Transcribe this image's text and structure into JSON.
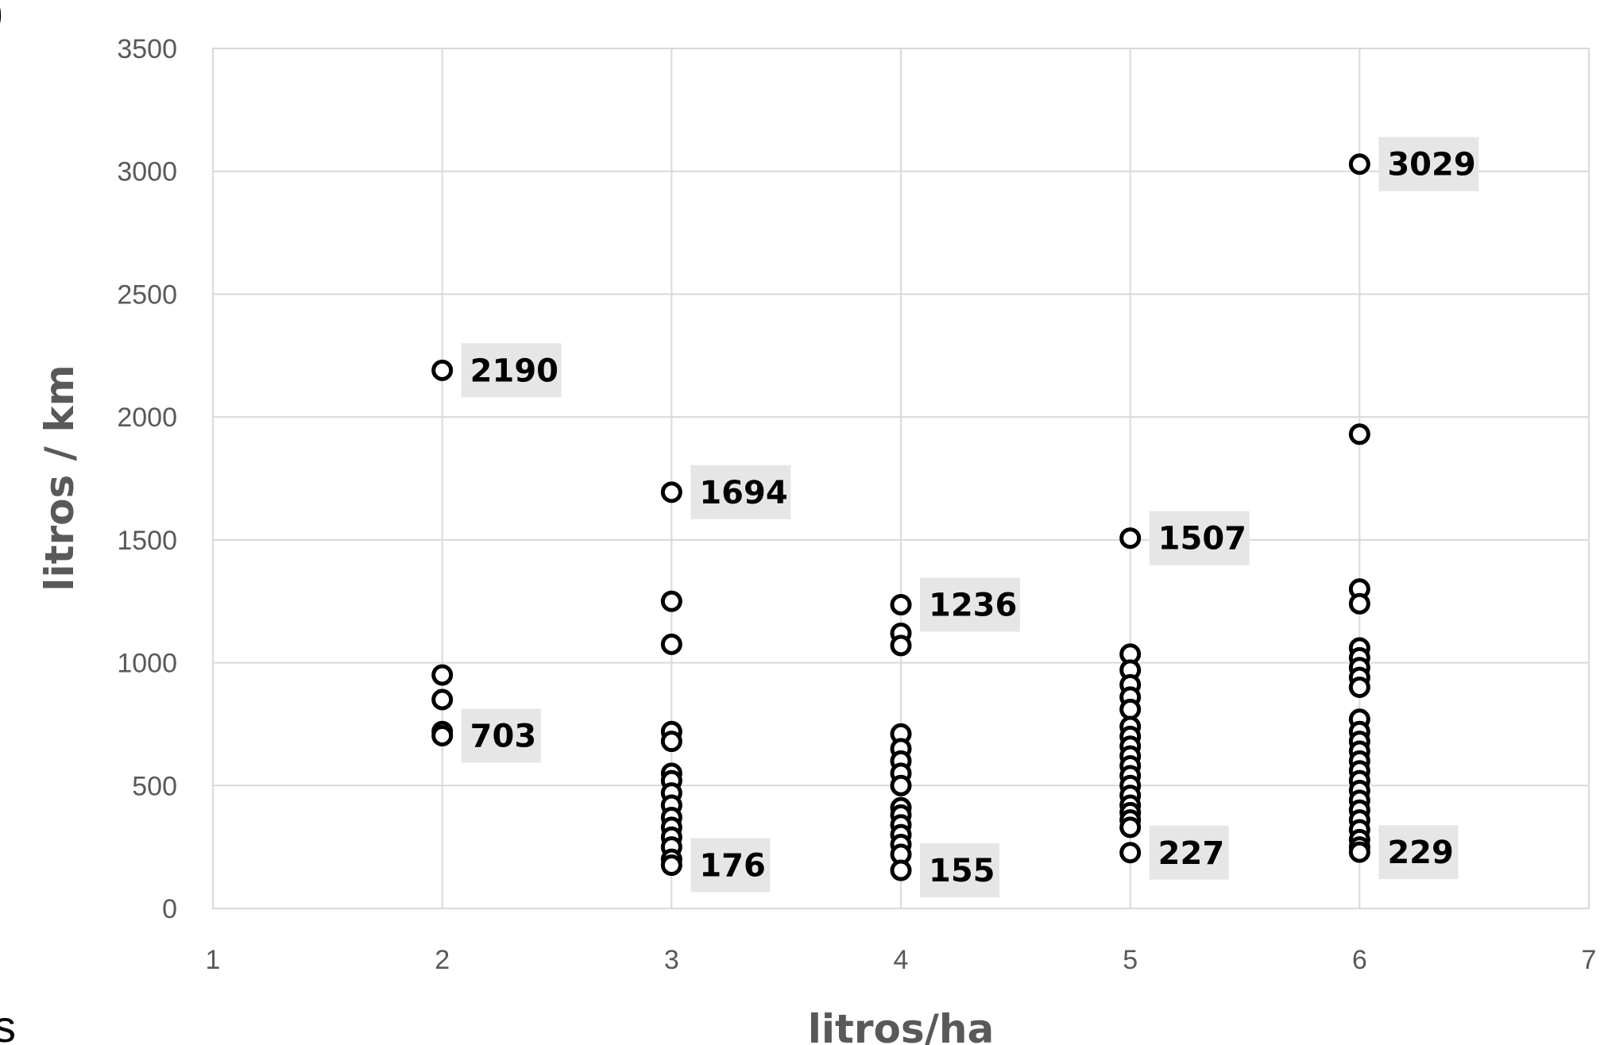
{
  "chart_data": {
    "type": "scatter",
    "xlabel": "litros/ha",
    "ylabel": "litros / km",
    "xlim": [
      1,
      7
    ],
    "ylim": [
      0,
      3500
    ],
    "x_ticks": [
      1,
      2,
      3,
      4,
      5,
      6,
      7
    ],
    "y_ticks": [
      0,
      500,
      1000,
      1500,
      2000,
      2500,
      3000,
      3500
    ],
    "grid": true,
    "legend": "none",
    "colors": {
      "marker_stroke": "#000000",
      "marker_fill": "#ffffff",
      "grid": "#d9d9d9",
      "axis_text": "#595959",
      "label_box": "#e6e6e6"
    },
    "series": [
      {
        "points": [
          {
            "x": 2,
            "y": 2190
          },
          {
            "x": 2,
            "y": 950
          },
          {
            "x": 2,
            "y": 850
          },
          {
            "x": 2,
            "y": 720
          },
          {
            "x": 2,
            "y": 703
          },
          {
            "x": 3,
            "y": 1694
          },
          {
            "x": 3,
            "y": 1250
          },
          {
            "x": 3,
            "y": 1075
          },
          {
            "x": 3,
            "y": 720
          },
          {
            "x": 3,
            "y": 680
          },
          {
            "x": 3,
            "y": 550
          },
          {
            "x": 3,
            "y": 520
          },
          {
            "x": 3,
            "y": 470
          },
          {
            "x": 3,
            "y": 420
          },
          {
            "x": 3,
            "y": 370
          },
          {
            "x": 3,
            "y": 330
          },
          {
            "x": 3,
            "y": 290
          },
          {
            "x": 3,
            "y": 250
          },
          {
            "x": 3,
            "y": 200
          },
          {
            "x": 3,
            "y": 176
          },
          {
            "x": 4,
            "y": 1236
          },
          {
            "x": 4,
            "y": 1120
          },
          {
            "x": 4,
            "y": 1070
          },
          {
            "x": 4,
            "y": 710
          },
          {
            "x": 4,
            "y": 650
          },
          {
            "x": 4,
            "y": 600
          },
          {
            "x": 4,
            "y": 550
          },
          {
            "x": 4,
            "y": 500
          },
          {
            "x": 4,
            "y": 410
          },
          {
            "x": 4,
            "y": 380
          },
          {
            "x": 4,
            "y": 340
          },
          {
            "x": 4,
            "y": 300
          },
          {
            "x": 4,
            "y": 260
          },
          {
            "x": 4,
            "y": 220
          },
          {
            "x": 4,
            "y": 155
          },
          {
            "x": 5,
            "y": 1507
          },
          {
            "x": 5,
            "y": 1035
          },
          {
            "x": 5,
            "y": 970
          },
          {
            "x": 5,
            "y": 910
          },
          {
            "x": 5,
            "y": 860
          },
          {
            "x": 5,
            "y": 810
          },
          {
            "x": 5,
            "y": 740
          },
          {
            "x": 5,
            "y": 700
          },
          {
            "x": 5,
            "y": 660
          },
          {
            "x": 5,
            "y": 620
          },
          {
            "x": 5,
            "y": 580
          },
          {
            "x": 5,
            "y": 540
          },
          {
            "x": 5,
            "y": 500
          },
          {
            "x": 5,
            "y": 460
          },
          {
            "x": 5,
            "y": 420
          },
          {
            "x": 5,
            "y": 390
          },
          {
            "x": 5,
            "y": 360
          },
          {
            "x": 5,
            "y": 330
          },
          {
            "x": 5,
            "y": 227
          },
          {
            "x": 6,
            "y": 3029
          },
          {
            "x": 6,
            "y": 1930
          },
          {
            "x": 6,
            "y": 1300
          },
          {
            "x": 6,
            "y": 1240
          },
          {
            "x": 6,
            "y": 1060
          },
          {
            "x": 6,
            "y": 1020
          },
          {
            "x": 6,
            "y": 980
          },
          {
            "x": 6,
            "y": 940
          },
          {
            "x": 6,
            "y": 900
          },
          {
            "x": 6,
            "y": 770
          },
          {
            "x": 6,
            "y": 720
          },
          {
            "x": 6,
            "y": 680
          },
          {
            "x": 6,
            "y": 640
          },
          {
            "x": 6,
            "y": 600
          },
          {
            "x": 6,
            "y": 560
          },
          {
            "x": 6,
            "y": 520
          },
          {
            "x": 6,
            "y": 480
          },
          {
            "x": 6,
            "y": 440
          },
          {
            "x": 6,
            "y": 400
          },
          {
            "x": 6,
            "y": 360
          },
          {
            "x": 6,
            "y": 320
          },
          {
            "x": 6,
            "y": 280
          },
          {
            "x": 6,
            "y": 250
          },
          {
            "x": 6,
            "y": 229
          }
        ]
      }
    ],
    "data_labels": [
      {
        "x": 2,
        "y": 2190,
        "text": "2190"
      },
      {
        "x": 2,
        "y": 703,
        "text": "703"
      },
      {
        "x": 3,
        "y": 1694,
        "text": "1694"
      },
      {
        "x": 3,
        "y": 176,
        "text": "176"
      },
      {
        "x": 4,
        "y": 1236,
        "text": "1236"
      },
      {
        "x": 4,
        "y": 155,
        "text": "155"
      },
      {
        "x": 5,
        "y": 1507,
        "text": "1507"
      },
      {
        "x": 5,
        "y": 227,
        "text": "227"
      },
      {
        "x": 6,
        "y": 3029,
        "text": "3029"
      },
      {
        "x": 6,
        "y": 229,
        "text": "229"
      }
    ]
  },
  "edge_fragments": {
    "top_left": ")",
    "bottom_left": "s"
  }
}
